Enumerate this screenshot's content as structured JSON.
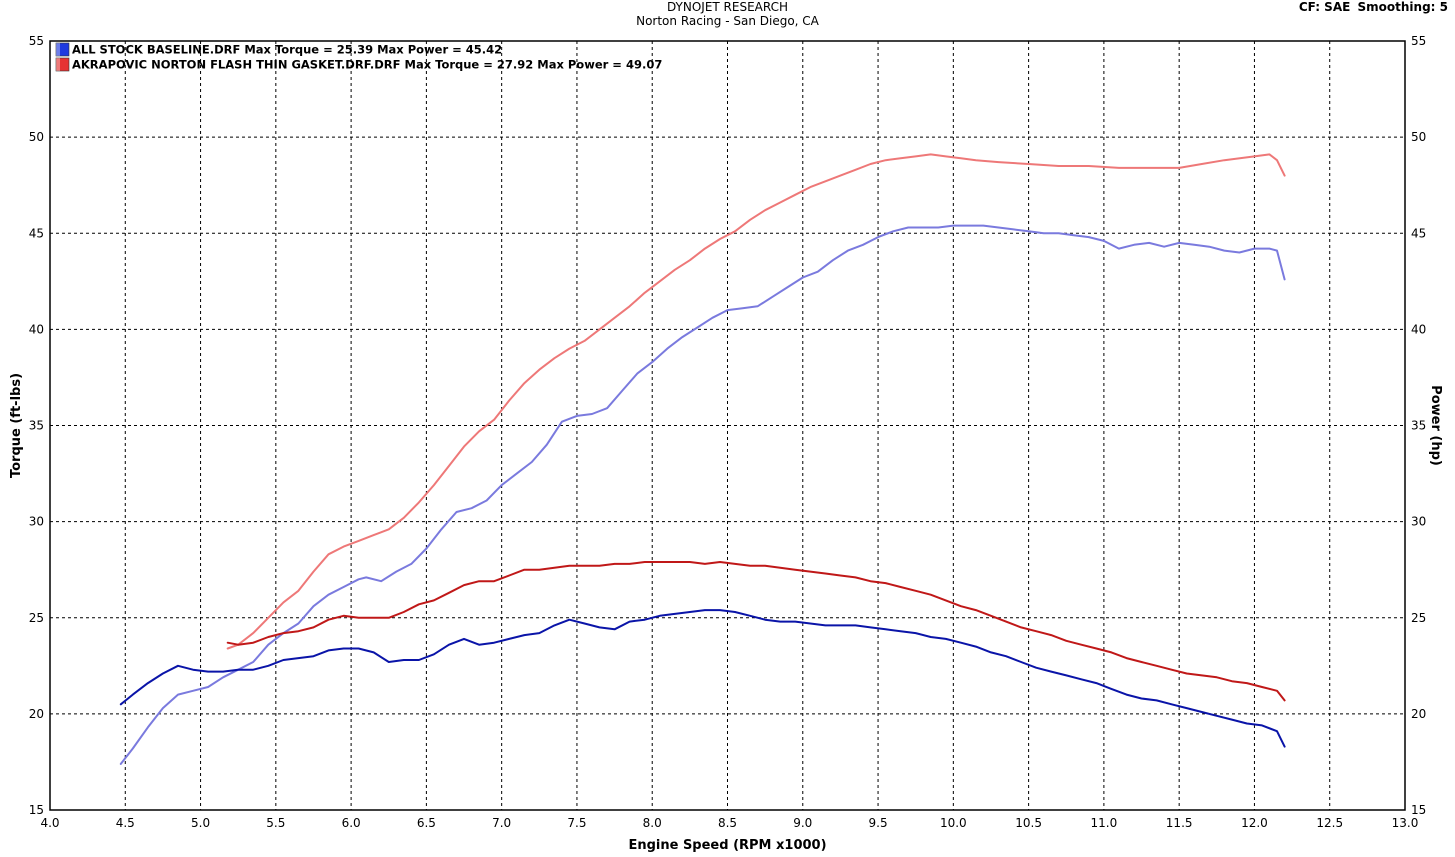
{
  "header": {
    "title": "DYNOJET RESEARCH",
    "subtitle": "Norton Racing - San Diego, CA",
    "cf_label": "CF: SAE",
    "smoothing_label": "Smoothing: 5"
  },
  "colors": {
    "baseline_torque": "#0a14a8",
    "baseline_power": "#7a7ade",
    "akrapovic_torque": "#c01818",
    "akrapovic_power": "#ee7878",
    "grid": "#000000"
  },
  "chart_data": {
    "type": "line",
    "xlabel": "Engine Speed (RPM x1000)",
    "ylabel_left": "Torque (ft-lbs)",
    "ylabel_right": "Power (hp)",
    "xlim": [
      4.0,
      13.0
    ],
    "ylim": [
      15,
      55
    ],
    "x_ticks": [
      "4.0",
      "4.5",
      "5.0",
      "5.5",
      "6.0",
      "6.5",
      "7.0",
      "7.5",
      "8.0",
      "8.5",
      "9.0",
      "9.5",
      "10.0",
      "10.5",
      "11.0",
      "11.5",
      "12.0",
      "12.5",
      "13.0"
    ],
    "y_ticks": [
      "15",
      "20",
      "25",
      "30",
      "35",
      "40",
      "45",
      "50",
      "55"
    ],
    "grid": true,
    "legend_position": "top-left",
    "legend": [
      {
        "label": "ALL STOCK BASELINE.DRF Max Torque = 25.39 Max Power = 45.42",
        "color": "#1f3ae0"
      },
      {
        "label": "AKRAPOVIC NORTON FLASH THIN GASKET.DRF.DRF Max Torque = 27.92 Max Power = 49.07",
        "color": "#e63333"
      }
    ],
    "series": [
      {
        "kind": "power",
        "color": "#7a7ade",
        "points": [
          [
            4.47,
            17.4
          ],
          [
            4.55,
            18.2
          ],
          [
            4.65,
            19.3
          ],
          [
            4.75,
            20.3
          ],
          [
            4.85,
            21.0
          ],
          [
            4.95,
            21.2
          ],
          [
            5.05,
            21.4
          ],
          [
            5.15,
            21.9
          ],
          [
            5.25,
            22.3
          ],
          [
            5.35,
            22.7
          ],
          [
            5.45,
            23.6
          ],
          [
            5.55,
            24.2
          ],
          [
            5.65,
            24.7
          ],
          [
            5.75,
            25.6
          ],
          [
            5.85,
            26.2
          ],
          [
            5.95,
            26.6
          ],
          [
            6.05,
            27.0
          ],
          [
            6.1,
            27.1
          ],
          [
            6.2,
            26.9
          ],
          [
            6.3,
            27.4
          ],
          [
            6.4,
            27.8
          ],
          [
            6.5,
            28.6
          ],
          [
            6.6,
            29.6
          ],
          [
            6.7,
            30.5
          ],
          [
            6.8,
            30.7
          ],
          [
            6.9,
            31.1
          ],
          [
            7.0,
            31.9
          ],
          [
            7.1,
            32.5
          ],
          [
            7.2,
            33.1
          ],
          [
            7.3,
            34.0
          ],
          [
            7.4,
            35.2
          ],
          [
            7.5,
            35.5
          ],
          [
            7.6,
            35.6
          ],
          [
            7.7,
            35.9
          ],
          [
            7.8,
            36.8
          ],
          [
            7.9,
            37.7
          ],
          [
            8.0,
            38.3
          ],
          [
            8.1,
            39.0
          ],
          [
            8.2,
            39.6
          ],
          [
            8.3,
            40.1
          ],
          [
            8.4,
            40.6
          ],
          [
            8.5,
            41.0
          ],
          [
            8.6,
            41.1
          ],
          [
            8.7,
            41.2
          ],
          [
            8.8,
            41.7
          ],
          [
            8.9,
            42.2
          ],
          [
            9.0,
            42.7
          ],
          [
            9.1,
            43.0
          ],
          [
            9.2,
            43.6
          ],
          [
            9.3,
            44.1
          ],
          [
            9.4,
            44.4
          ],
          [
            9.5,
            44.8
          ],
          [
            9.6,
            45.1
          ],
          [
            9.7,
            45.3
          ],
          [
            9.8,
            45.3
          ],
          [
            9.9,
            45.3
          ],
          [
            10.0,
            45.4
          ],
          [
            10.1,
            45.4
          ],
          [
            10.2,
            45.4
          ],
          [
            10.3,
            45.3
          ],
          [
            10.4,
            45.2
          ],
          [
            10.5,
            45.1
          ],
          [
            10.6,
            45.0
          ],
          [
            10.7,
            45.0
          ],
          [
            10.8,
            44.9
          ],
          [
            10.9,
            44.8
          ],
          [
            11.0,
            44.6
          ],
          [
            11.1,
            44.2
          ],
          [
            11.2,
            44.4
          ],
          [
            11.3,
            44.5
          ],
          [
            11.4,
            44.3
          ],
          [
            11.5,
            44.5
          ],
          [
            11.6,
            44.4
          ],
          [
            11.7,
            44.3
          ],
          [
            11.8,
            44.1
          ],
          [
            11.9,
            44.0
          ],
          [
            12.0,
            44.2
          ],
          [
            12.1,
            44.2
          ],
          [
            12.15,
            44.1
          ],
          [
            12.2,
            42.6
          ]
        ]
      },
      {
        "kind": "power",
        "color": "#ee7878",
        "points": [
          [
            5.18,
            23.4
          ],
          [
            5.25,
            23.6
          ],
          [
            5.35,
            24.2
          ],
          [
            5.45,
            25.0
          ],
          [
            5.55,
            25.8
          ],
          [
            5.65,
            26.4
          ],
          [
            5.75,
            27.4
          ],
          [
            5.85,
            28.3
          ],
          [
            5.95,
            28.7
          ],
          [
            6.05,
            29.0
          ],
          [
            6.15,
            29.3
          ],
          [
            6.25,
            29.6
          ],
          [
            6.35,
            30.2
          ],
          [
            6.45,
            31.0
          ],
          [
            6.55,
            31.9
          ],
          [
            6.65,
            32.9
          ],
          [
            6.75,
            33.9
          ],
          [
            6.85,
            34.7
          ],
          [
            6.95,
            35.3
          ],
          [
            7.05,
            36.3
          ],
          [
            7.15,
            37.2
          ],
          [
            7.25,
            37.9
          ],
          [
            7.35,
            38.5
          ],
          [
            7.45,
            39.0
          ],
          [
            7.55,
            39.4
          ],
          [
            7.65,
            40.0
          ],
          [
            7.75,
            40.6
          ],
          [
            7.85,
            41.2
          ],
          [
            7.95,
            41.9
          ],
          [
            8.05,
            42.5
          ],
          [
            8.15,
            43.1
          ],
          [
            8.25,
            43.6
          ],
          [
            8.35,
            44.2
          ],
          [
            8.45,
            44.7
          ],
          [
            8.55,
            45.1
          ],
          [
            8.65,
            45.7
          ],
          [
            8.75,
            46.2
          ],
          [
            8.85,
            46.6
          ],
          [
            8.95,
            47.0
          ],
          [
            9.05,
            47.4
          ],
          [
            9.15,
            47.7
          ],
          [
            9.25,
            48.0
          ],
          [
            9.35,
            48.3
          ],
          [
            9.45,
            48.6
          ],
          [
            9.55,
            48.8
          ],
          [
            9.65,
            48.9
          ],
          [
            9.75,
            49.0
          ],
          [
            9.85,
            49.1
          ],
          [
            9.95,
            49.0
          ],
          [
            10.05,
            48.9
          ],
          [
            10.15,
            48.8
          ],
          [
            10.3,
            48.7
          ],
          [
            10.5,
            48.6
          ],
          [
            10.7,
            48.5
          ],
          [
            10.9,
            48.5
          ],
          [
            11.1,
            48.4
          ],
          [
            11.3,
            48.4
          ],
          [
            11.5,
            48.4
          ],
          [
            11.65,
            48.6
          ],
          [
            11.8,
            48.8
          ],
          [
            12.0,
            49.0
          ],
          [
            12.1,
            49.1
          ],
          [
            12.15,
            48.8
          ],
          [
            12.2,
            48.0
          ]
        ]
      },
      {
        "kind": "torque",
        "color": "#0a14a8",
        "points": [
          [
            4.47,
            20.5
          ],
          [
            4.55,
            21.0
          ],
          [
            4.65,
            21.6
          ],
          [
            4.75,
            22.1
          ],
          [
            4.85,
            22.5
          ],
          [
            4.95,
            22.3
          ],
          [
            5.05,
            22.2
          ],
          [
            5.15,
            22.2
          ],
          [
            5.25,
            22.3
          ],
          [
            5.35,
            22.3
          ],
          [
            5.45,
            22.5
          ],
          [
            5.55,
            22.8
          ],
          [
            5.65,
            22.9
          ],
          [
            5.75,
            23.0
          ],
          [
            5.85,
            23.3
          ],
          [
            5.95,
            23.4
          ],
          [
            6.05,
            23.4
          ],
          [
            6.15,
            23.2
          ],
          [
            6.25,
            22.7
          ],
          [
            6.35,
            22.8
          ],
          [
            6.45,
            22.8
          ],
          [
            6.55,
            23.1
          ],
          [
            6.65,
            23.6
          ],
          [
            6.75,
            23.9
          ],
          [
            6.85,
            23.6
          ],
          [
            6.95,
            23.7
          ],
          [
            7.05,
            23.9
          ],
          [
            7.15,
            24.1
          ],
          [
            7.25,
            24.2
          ],
          [
            7.35,
            24.6
          ],
          [
            7.45,
            24.9
          ],
          [
            7.55,
            24.7
          ],
          [
            7.65,
            24.5
          ],
          [
            7.75,
            24.4
          ],
          [
            7.85,
            24.8
          ],
          [
            7.95,
            24.9
          ],
          [
            8.05,
            25.1
          ],
          [
            8.15,
            25.2
          ],
          [
            8.25,
            25.3
          ],
          [
            8.35,
            25.4
          ],
          [
            8.45,
            25.4
          ],
          [
            8.55,
            25.3
          ],
          [
            8.65,
            25.1
          ],
          [
            8.75,
            24.9
          ],
          [
            8.85,
            24.8
          ],
          [
            8.95,
            24.8
          ],
          [
            9.05,
            24.7
          ],
          [
            9.15,
            24.6
          ],
          [
            9.25,
            24.6
          ],
          [
            9.35,
            24.6
          ],
          [
            9.45,
            24.5
          ],
          [
            9.55,
            24.4
          ],
          [
            9.65,
            24.3
          ],
          [
            9.75,
            24.2
          ],
          [
            9.85,
            24.0
          ],
          [
            9.95,
            23.9
          ],
          [
            10.05,
            23.7
          ],
          [
            10.15,
            23.5
          ],
          [
            10.25,
            23.2
          ],
          [
            10.35,
            23.0
          ],
          [
            10.45,
            22.7
          ],
          [
            10.55,
            22.4
          ],
          [
            10.65,
            22.2
          ],
          [
            10.75,
            22.0
          ],
          [
            10.85,
            21.8
          ],
          [
            10.95,
            21.6
          ],
          [
            11.05,
            21.3
          ],
          [
            11.15,
            21.0
          ],
          [
            11.25,
            20.8
          ],
          [
            11.35,
            20.7
          ],
          [
            11.45,
            20.5
          ],
          [
            11.55,
            20.3
          ],
          [
            11.65,
            20.1
          ],
          [
            11.75,
            19.9
          ],
          [
            11.85,
            19.7
          ],
          [
            11.95,
            19.5
          ],
          [
            12.05,
            19.4
          ],
          [
            12.15,
            19.1
          ],
          [
            12.2,
            18.3
          ]
        ]
      },
      {
        "kind": "torque",
        "color": "#c01818",
        "points": [
          [
            5.18,
            23.7
          ],
          [
            5.25,
            23.6
          ],
          [
            5.35,
            23.7
          ],
          [
            5.45,
            24.0
          ],
          [
            5.55,
            24.2
          ],
          [
            5.65,
            24.3
          ],
          [
            5.75,
            24.5
          ],
          [
            5.85,
            24.9
          ],
          [
            5.95,
            25.1
          ],
          [
            6.05,
            25.0
          ],
          [
            6.15,
            25.0
          ],
          [
            6.25,
            25.0
          ],
          [
            6.35,
            25.3
          ],
          [
            6.45,
            25.7
          ],
          [
            6.55,
            25.9
          ],
          [
            6.65,
            26.3
          ],
          [
            6.75,
            26.7
          ],
          [
            6.85,
            26.9
          ],
          [
            6.95,
            26.9
          ],
          [
            7.05,
            27.2
          ],
          [
            7.15,
            27.5
          ],
          [
            7.25,
            27.5
          ],
          [
            7.35,
            27.6
          ],
          [
            7.45,
            27.7
          ],
          [
            7.55,
            27.7
          ],
          [
            7.65,
            27.7
          ],
          [
            7.75,
            27.8
          ],
          [
            7.85,
            27.8
          ],
          [
            7.95,
            27.9
          ],
          [
            8.05,
            27.9
          ],
          [
            8.15,
            27.9
          ],
          [
            8.25,
            27.9
          ],
          [
            8.35,
            27.8
          ],
          [
            8.45,
            27.9
          ],
          [
            8.55,
            27.8
          ],
          [
            8.65,
            27.7
          ],
          [
            8.75,
            27.7
          ],
          [
            8.85,
            27.6
          ],
          [
            8.95,
            27.5
          ],
          [
            9.05,
            27.4
          ],
          [
            9.15,
            27.3
          ],
          [
            9.25,
            27.2
          ],
          [
            9.35,
            27.1
          ],
          [
            9.45,
            26.9
          ],
          [
            9.55,
            26.8
          ],
          [
            9.65,
            26.6
          ],
          [
            9.75,
            26.4
          ],
          [
            9.85,
            26.2
          ],
          [
            9.95,
            25.9
          ],
          [
            10.05,
            25.6
          ],
          [
            10.15,
            25.4
          ],
          [
            10.25,
            25.1
          ],
          [
            10.35,
            24.8
          ],
          [
            10.45,
            24.5
          ],
          [
            10.55,
            24.3
          ],
          [
            10.65,
            24.1
          ],
          [
            10.75,
            23.8
          ],
          [
            10.85,
            23.6
          ],
          [
            10.95,
            23.4
          ],
          [
            11.05,
            23.2
          ],
          [
            11.15,
            22.9
          ],
          [
            11.25,
            22.7
          ],
          [
            11.35,
            22.5
          ],
          [
            11.45,
            22.3
          ],
          [
            11.55,
            22.1
          ],
          [
            11.65,
            22.0
          ],
          [
            11.75,
            21.9
          ],
          [
            11.85,
            21.7
          ],
          [
            11.95,
            21.6
          ],
          [
            12.05,
            21.4
          ],
          [
            12.15,
            21.2
          ],
          [
            12.2,
            20.7
          ]
        ]
      }
    ]
  }
}
